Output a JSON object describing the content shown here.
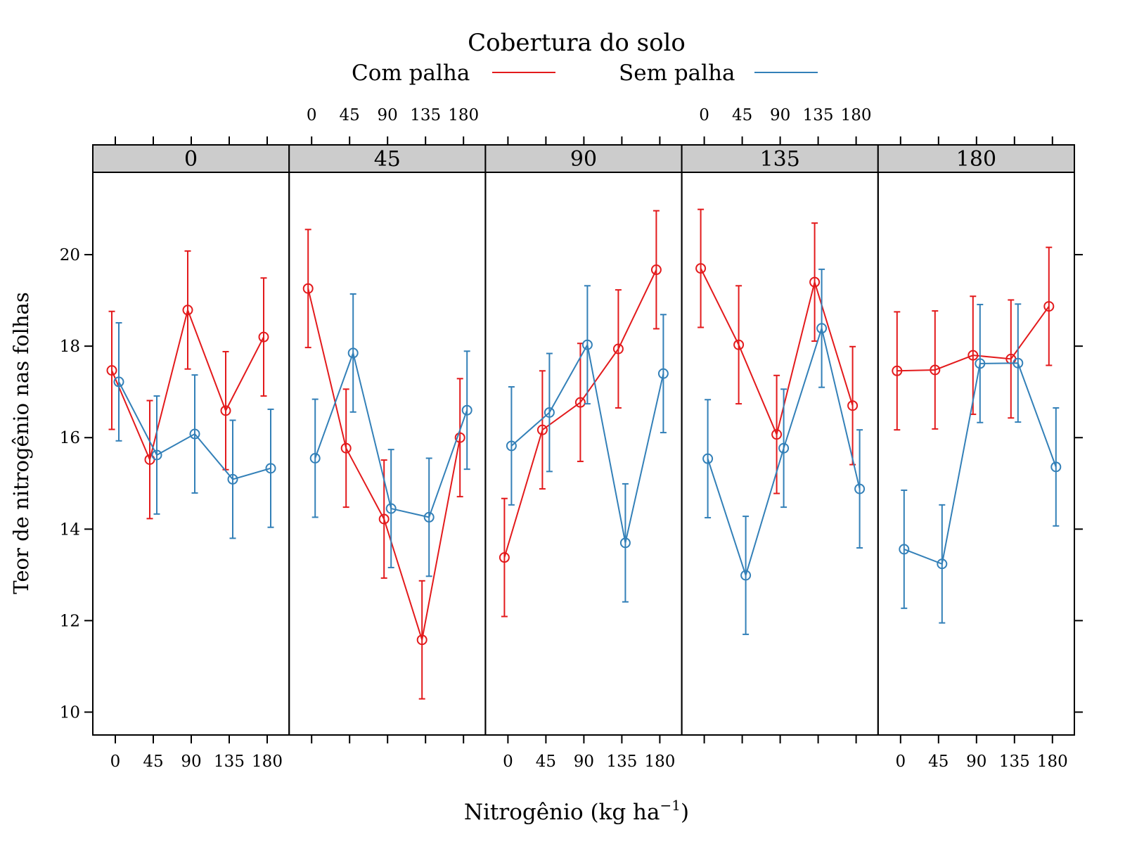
{
  "chart_data": {
    "type": "line",
    "legend": {
      "title": "Cobertura do solo",
      "entries": [
        {
          "name": "Com palha",
          "color": "#e31a1c"
        },
        {
          "name": "Sem palha",
          "color": "#3380b8"
        }
      ],
      "placement": "top"
    },
    "xlabel": "Nitrogênio",
    "xlabel_unit": "(kg  ha",
    "xlabel_exp": "−1",
    "xlabel_close": ")",
    "ylabel": "Teor de nitrogênio nas folhas",
    "ylim": [
      9.5,
      21.8
    ],
    "yticks": [
      10,
      12,
      14,
      16,
      18,
      20
    ],
    "x_categories": [
      "0",
      "45",
      "90",
      "135",
      "180"
    ],
    "grid": false,
    "panels": [
      {
        "strip": "0",
        "series": [
          {
            "name": "Com palha",
            "y": [
              17.47,
              15.52,
              18.79,
              16.59,
              18.2
            ],
            "lower": [
              16.18,
              14.23,
              17.5,
              15.3,
              16.91
            ],
            "upper": [
              18.76,
              16.81,
              20.08,
              17.88,
              19.49
            ]
          },
          {
            "name": "Sem palha",
            "y": [
              17.22,
              15.62,
              16.08,
              15.09,
              15.33
            ],
            "lower": [
              15.93,
              14.33,
              14.79,
              13.8,
              14.04
            ],
            "upper": [
              18.51,
              16.91,
              17.37,
              16.38,
              16.62
            ]
          }
        ]
      },
      {
        "strip": "45",
        "series": [
          {
            "name": "Com palha",
            "y": [
              19.26,
              15.77,
              14.22,
              11.58,
              16.0
            ],
            "lower": [
              17.97,
              14.48,
              12.93,
              10.29,
              14.71
            ],
            "upper": [
              20.55,
              17.06,
              15.51,
              12.87,
              17.29
            ]
          },
          {
            "name": "Sem palha",
            "y": [
              15.55,
              17.85,
              14.45,
              14.26,
              16.6
            ],
            "lower": [
              14.26,
              16.56,
              13.16,
              12.97,
              15.31
            ],
            "upper": [
              16.84,
              19.14,
              15.74,
              15.55,
              17.89
            ]
          }
        ]
      },
      {
        "strip": "90",
        "series": [
          {
            "name": "Com palha",
            "y": [
              13.38,
              16.17,
              16.77,
              17.94,
              19.67
            ],
            "lower": [
              12.09,
              14.88,
              15.48,
              16.65,
              18.38
            ],
            "upper": [
              14.67,
              17.46,
              18.06,
              19.23,
              20.96
            ]
          },
          {
            "name": "Sem palha",
            "y": [
              15.82,
              16.55,
              18.03,
              13.7,
              17.4
            ],
            "lower": [
              14.53,
              15.26,
              16.74,
              12.41,
              16.11
            ],
            "upper": [
              17.11,
              17.84,
              19.32,
              14.99,
              18.69
            ]
          }
        ]
      },
      {
        "strip": "135",
        "series": [
          {
            "name": "Com palha",
            "y": [
              19.7,
              18.03,
              16.07,
              19.4,
              16.7
            ],
            "lower": [
              18.41,
              16.74,
              14.78,
              18.11,
              15.41
            ],
            "upper": [
              20.99,
              19.32,
              17.36,
              20.69,
              17.99
            ]
          },
          {
            "name": "Sem palha",
            "y": [
              15.54,
              12.99,
              15.77,
              18.39,
              14.88
            ],
            "lower": [
              14.25,
              11.7,
              14.48,
              17.1,
              13.59
            ],
            "upper": [
              16.83,
              14.28,
              17.06,
              19.68,
              16.17
            ]
          }
        ]
      },
      {
        "strip": "180",
        "series": [
          {
            "name": "Com palha",
            "y": [
              17.46,
              17.48,
              17.8,
              17.72,
              18.87
            ],
            "lower": [
              16.17,
              16.19,
              16.51,
              16.43,
              17.58
            ],
            "upper": [
              18.75,
              18.77,
              19.09,
              19.01,
              20.16
            ]
          },
          {
            "name": "Sem palha",
            "y": [
              13.56,
              13.24,
              17.62,
              17.63,
              15.36
            ],
            "lower": [
              12.27,
              11.95,
              16.33,
              16.34,
              14.07
            ],
            "upper": [
              14.85,
              14.53,
              18.91,
              18.92,
              16.65
            ]
          }
        ]
      }
    ]
  }
}
